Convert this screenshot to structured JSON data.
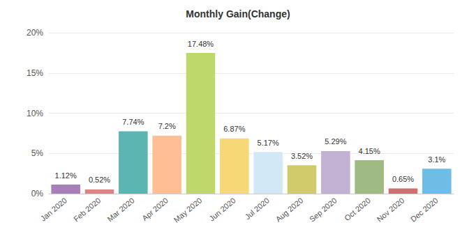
{
  "chart_data": {
    "type": "bar",
    "title": "Monthly Gain(Change)",
    "categories": [
      "Jan 2020",
      "Feb 2020",
      "Mar 2020",
      "Apr 2020",
      "May 2020",
      "Jun 2020",
      "Jul 2020",
      "Aug 2020",
      "Sep 2020",
      "Oct 2020",
      "Nov 2020",
      "Dec 2020"
    ],
    "values": [
      1.12,
      0.52,
      7.74,
      7.2,
      17.48,
      6.87,
      5.17,
      3.52,
      5.29,
      4.15,
      0.65,
      3.1
    ],
    "value_labels": [
      "1.12%",
      "0.52%",
      "7.74%",
      "7.2%",
      "17.48%",
      "6.87%",
      "5.17%",
      "3.52%",
      "5.29%",
      "4.15%",
      "0.65%",
      "3.1%"
    ],
    "colors": [
      "#a97fba",
      "#d98585",
      "#5cb5b1",
      "#ffbe94",
      "#bfd86c",
      "#f6d877",
      "#d3e8f7",
      "#d1cb6b",
      "#c3b1d4",
      "#9fba82",
      "#d26d72",
      "#6dbde6"
    ],
    "ylim": [
      0,
      20
    ],
    "yticks": [
      {
        "value": 0,
        "label": "0%"
      },
      {
        "value": 5,
        "label": "5%"
      },
      {
        "value": 10,
        "label": "10%"
      },
      {
        "value": 15,
        "label": "15%"
      },
      {
        "value": 20,
        "label": "20%"
      }
    ],
    "grid": true,
    "data_labels": true
  }
}
